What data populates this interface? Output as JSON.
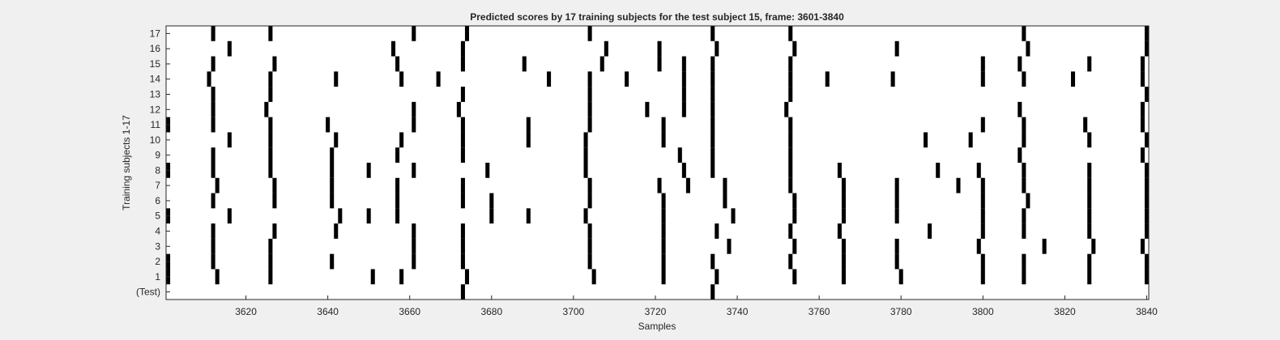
{
  "chart_data": {
    "type": "heatmap",
    "title": "Predicted scores by 17 training subjects for the test subject 15, frame: 3601-3840",
    "xlabel": "Samples",
    "ylabel": "Training subjects 1-17",
    "xlim": [
      3601,
      3840
    ],
    "x_ticks": [
      3620,
      3640,
      3660,
      3680,
      3700,
      3720,
      3740,
      3760,
      3780,
      3800,
      3820,
      3840
    ],
    "y_tick_labels": [
      "(Test)",
      "1",
      "2",
      "3",
      "4",
      "5",
      "6",
      "7",
      "8",
      "9",
      "10",
      "11",
      "12",
      "13",
      "14",
      "15",
      "16",
      "17"
    ],
    "grid": false,
    "colors": {
      "mark": "#000000",
      "background": "#ffffff",
      "figure": "#f0f0f0"
    },
    "rows": [
      {
        "label": "(Test)",
        "x": [
          3673,
          3734
        ]
      },
      {
        "label": "1",
        "x": [
          3601,
          3613,
          3626,
          3651,
          3658,
          3674,
          3705,
          3722,
          3735,
          3754,
          3766,
          3780,
          3800,
          3810,
          3826,
          3840
        ]
      },
      {
        "label": "2",
        "x": [
          3601,
          3612,
          3626,
          3641,
          3661,
          3673,
          3704,
          3722,
          3734,
          3753,
          3766,
          3779,
          3800,
          3810,
          3826,
          3840
        ]
      },
      {
        "label": "3",
        "x": [
          3612,
          3626,
          3661,
          3673,
          3704,
          3722,
          3738,
          3754,
          3766,
          3779,
          3799,
          3815,
          3827,
          3839
        ]
      },
      {
        "label": "4",
        "x": [
          3612,
          3627,
          3642,
          3661,
          3673,
          3704,
          3722,
          3735,
          3753,
          3765,
          3787,
          3800,
          3810,
          3826,
          3840
        ]
      },
      {
        "label": "5",
        "x": [
          3601,
          3616,
          3643,
          3650,
          3657,
          3680,
          3689,
          3703,
          3722,
          3739,
          3754,
          3766,
          3779,
          3800,
          3810,
          3826,
          3840
        ]
      },
      {
        "label": "6",
        "x": [
          3612,
          3627,
          3641,
          3657,
          3673,
          3680,
          3704,
          3722,
          3737,
          3754,
          3766,
          3779,
          3800,
          3811,
          3826,
          3840
        ]
      },
      {
        "label": "7",
        "x": [
          3613,
          3627,
          3641,
          3657,
          3673,
          3704,
          3721,
          3728,
          3737,
          3753,
          3766,
          3779,
          3794,
          3800,
          3810,
          3826,
          3840
        ]
      },
      {
        "label": "8",
        "x": [
          3601,
          3612,
          3626,
          3641,
          3650,
          3661,
          3679,
          3703,
          3727,
          3734,
          3753,
          3765,
          3789,
          3799,
          3810,
          3826,
          3840
        ]
      },
      {
        "label": "9",
        "x": [
          3612,
          3626,
          3641,
          3657,
          3673,
          3703,
          3726,
          3734,
          3753,
          3809,
          3839
        ]
      },
      {
        "label": "10",
        "x": [
          3616,
          3626,
          3642,
          3658,
          3673,
          3689,
          3703,
          3722,
          3734,
          3753,
          3786,
          3797,
          3810,
          3826,
          3840
        ]
      },
      {
        "label": "11",
        "x": [
          3601,
          3612,
          3626,
          3640,
          3661,
          3673,
          3689,
          3704,
          3722,
          3734,
          3753,
          3800,
          3810,
          3825,
          3839
        ]
      },
      {
        "label": "12",
        "x": [
          3612,
          3625,
          3661,
          3672,
          3704,
          3718,
          3727,
          3734,
          3752,
          3809,
          3839
        ]
      },
      {
        "label": "13",
        "x": [
          3612,
          3626,
          3673,
          3704,
          3727,
          3734,
          3753,
          3840
        ]
      },
      {
        "label": "14",
        "x": [
          3611,
          3626,
          3642,
          3658,
          3667,
          3694,
          3704,
          3713,
          3727,
          3734,
          3753,
          3762,
          3778,
          3800,
          3810,
          3822,
          3839
        ]
      },
      {
        "label": "15",
        "x": [
          3612,
          3627,
          3657,
          3673,
          3688,
          3707,
          3721,
          3727,
          3734,
          3753,
          3800,
          3809,
          3826,
          3839
        ]
      },
      {
        "label": "16",
        "x": [
          3616,
          3656,
          3673,
          3708,
          3721,
          3735,
          3754,
          3779,
          3811,
          3840
        ]
      },
      {
        "label": "17",
        "x": [
          3612,
          3626,
          3661,
          3674,
          3704,
          3734,
          3753,
          3810,
          3840
        ]
      }
    ]
  }
}
